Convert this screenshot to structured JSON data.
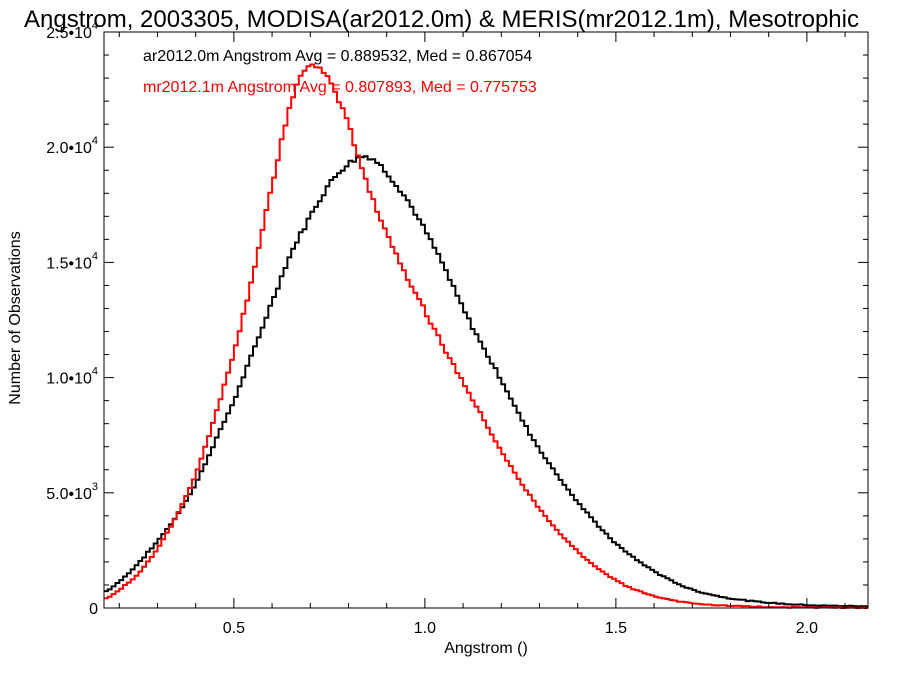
{
  "chart_data": {
    "type": "line",
    "title": "Angstrom, 2003305, MODISA(ar2012.0m) & MERIS(mr2012.1m), Mesotrophic",
    "xlabel": "Angstrom ()",
    "ylabel": "Number of Observations",
    "xlim": [
      0.16,
      2.16
    ],
    "ylim": [
      0,
      25000
    ],
    "x_ticks": [
      {
        "value": 0.5,
        "label": "0.5"
      },
      {
        "value": 1.0,
        "label": "1.0"
      },
      {
        "value": 1.5,
        "label": "1.5"
      },
      {
        "value": 2.0,
        "label": "2.0"
      }
    ],
    "y_ticks": [
      {
        "value": 0,
        "mant": "0",
        "exp": ""
      },
      {
        "value": 5000,
        "mant": "5.0•10",
        "exp": "3"
      },
      {
        "value": 10000,
        "mant": "1.0•10",
        "exp": "4"
      },
      {
        "value": 15000,
        "mant": "1.5•10",
        "exp": "4"
      },
      {
        "value": 20000,
        "mant": "2.0•10",
        "exp": "4"
      },
      {
        "value": 25000,
        "mant": "2.5•10",
        "exp": "4"
      }
    ],
    "grid": false,
    "step": true,
    "series": [
      {
        "name": "ar2012.0m",
        "color": "#000000",
        "label": "ar2012.0m Angstrom Avg = 0.889532, Med = 0.867054",
        "points": [
          [
            0.16,
            700
          ],
          [
            0.2,
            1150
          ],
          [
            0.25,
            1950
          ],
          [
            0.3,
            2900
          ],
          [
            0.35,
            4000
          ],
          [
            0.4,
            5400
          ],
          [
            0.45,
            7200
          ],
          [
            0.5,
            9000
          ],
          [
            0.55,
            11100
          ],
          [
            0.6,
            13300
          ],
          [
            0.65,
            15400
          ],
          [
            0.7,
            17000
          ],
          [
            0.75,
            18400
          ],
          [
            0.8,
            19300
          ],
          [
            0.85,
            19600
          ],
          [
            0.9,
            18900
          ],
          [
            0.95,
            17800
          ],
          [
            1.0,
            16400
          ],
          [
            1.05,
            14800
          ],
          [
            1.1,
            13000
          ],
          [
            1.15,
            11400
          ],
          [
            1.2,
            9900
          ],
          [
            1.25,
            8300
          ],
          [
            1.3,
            6900
          ],
          [
            1.35,
            5700
          ],
          [
            1.4,
            4600
          ],
          [
            1.45,
            3650
          ],
          [
            1.5,
            2800
          ],
          [
            1.55,
            2150
          ],
          [
            1.6,
            1600
          ],
          [
            1.65,
            1150
          ],
          [
            1.7,
            800
          ],
          [
            1.75,
            580
          ],
          [
            1.8,
            420
          ],
          [
            1.85,
            310
          ],
          [
            1.9,
            230
          ],
          [
            1.95,
            170
          ],
          [
            2.0,
            130
          ],
          [
            2.05,
            100
          ],
          [
            2.1,
            90
          ],
          [
            2.16,
            70
          ]
        ]
      },
      {
        "name": "mr2012.1m",
        "color": "#ff0000",
        "label": "mr2012.1m Angstrom Avg = 0.807893, Med = 0.775753",
        "points": [
          [
            0.16,
            400
          ],
          [
            0.2,
            800
          ],
          [
            0.25,
            1500
          ],
          [
            0.3,
            2600
          ],
          [
            0.35,
            4000
          ],
          [
            0.4,
            5800
          ],
          [
            0.45,
            8300
          ],
          [
            0.5,
            11100
          ],
          [
            0.55,
            14500
          ],
          [
            0.6,
            18300
          ],
          [
            0.65,
            22000
          ],
          [
            0.7,
            23500
          ],
          [
            0.75,
            22900
          ],
          [
            0.8,
            20900
          ],
          [
            0.85,
            18400
          ],
          [
            0.9,
            16300
          ],
          [
            0.95,
            14500
          ],
          [
            1.0,
            12900
          ],
          [
            1.05,
            11300
          ],
          [
            1.1,
            9800
          ],
          [
            1.15,
            8300
          ],
          [
            1.2,
            6800
          ],
          [
            1.25,
            5500
          ],
          [
            1.3,
            4300
          ],
          [
            1.35,
            3300
          ],
          [
            1.4,
            2450
          ],
          [
            1.45,
            1750
          ],
          [
            1.5,
            1200
          ],
          [
            1.55,
            800
          ],
          [
            1.6,
            520
          ],
          [
            1.65,
            330
          ],
          [
            1.7,
            210
          ],
          [
            1.75,
            140
          ],
          [
            1.8,
            95
          ],
          [
            1.85,
            65
          ],
          [
            1.9,
            45
          ],
          [
            1.95,
            30
          ],
          [
            2.0,
            20
          ],
          [
            2.05,
            15
          ],
          [
            2.1,
            10
          ],
          [
            2.16,
            8
          ]
        ]
      }
    ]
  }
}
